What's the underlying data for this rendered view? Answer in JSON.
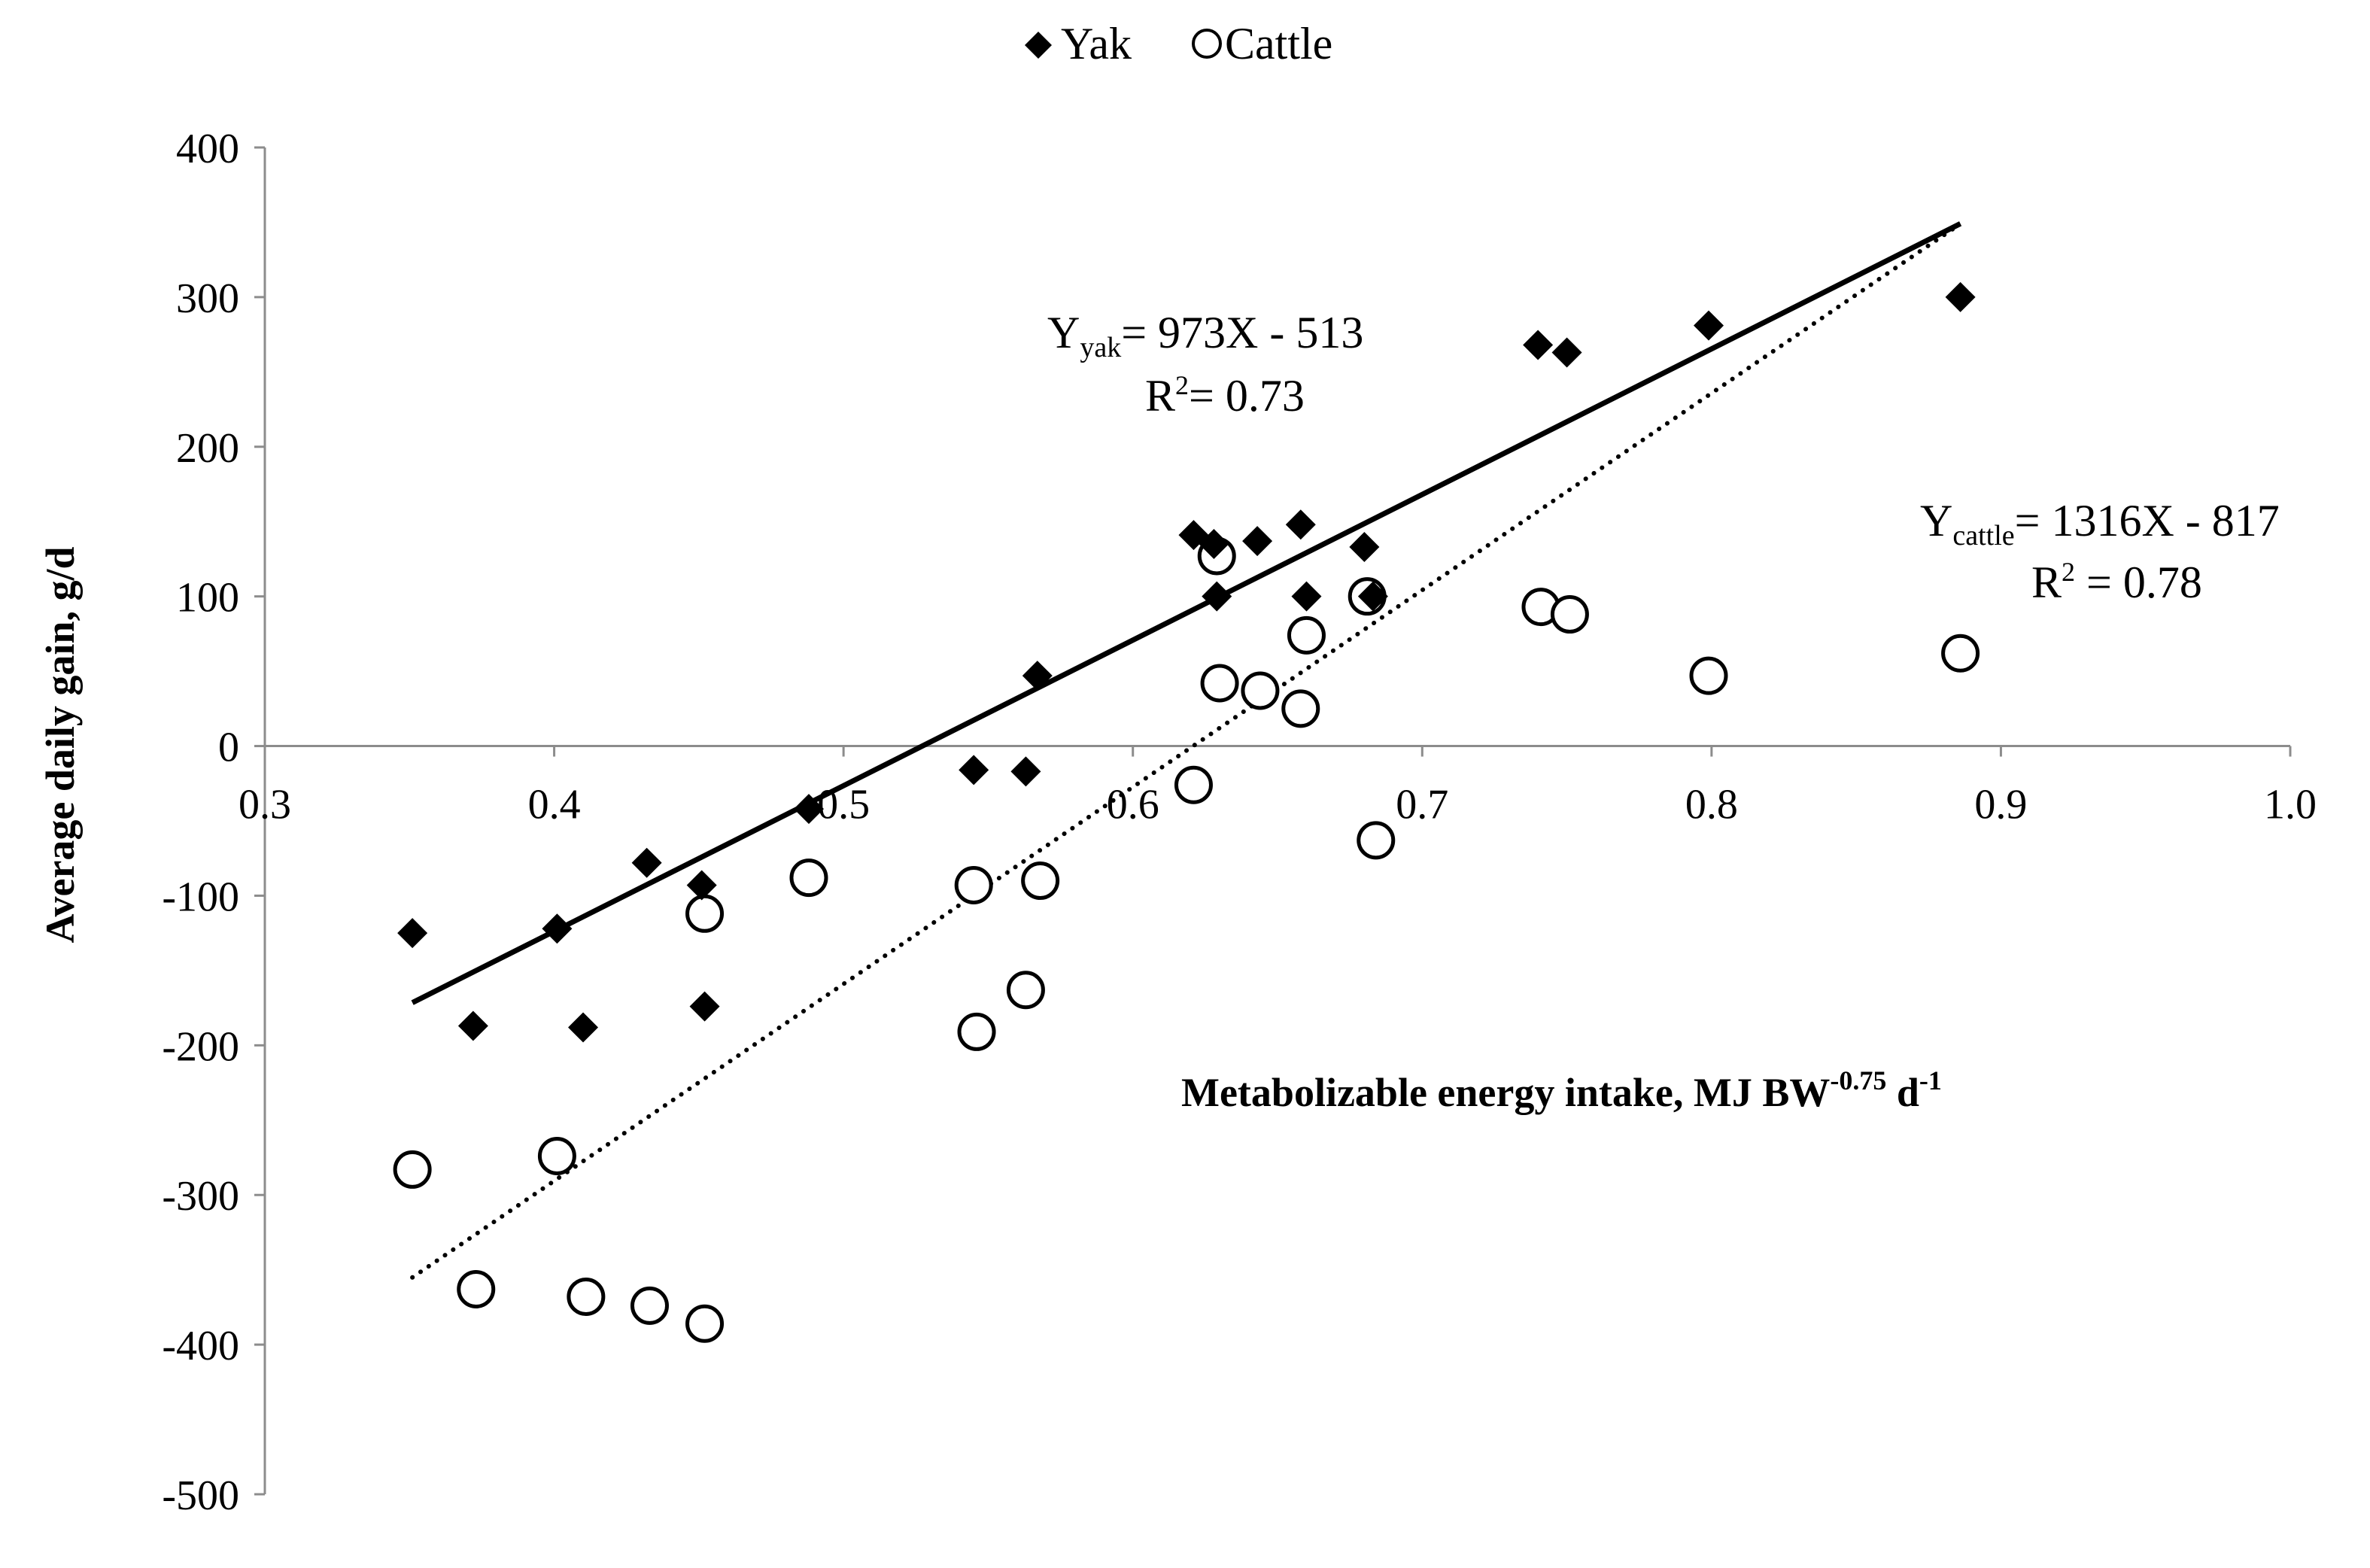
{
  "chart_data": {
    "type": "scatter",
    "title": "",
    "xlabel": "Metabolizable energy intake, MJ BW",
    "xlabel_exponent_bw": "-0.75",
    "xlabel_unit_d": " d",
    "xlabel_exponent_d": "-1",
    "ylabel": "Average daily gain, g/d",
    "xlim": [
      0.3,
      1.0
    ],
    "ylim": [
      -500,
      400
    ],
    "x_ticks": [
      "0.3",
      "0.4",
      "0.5",
      "0.6",
      "0.7",
      "0.8",
      "0.9",
      "1.0"
    ],
    "y_ticks": [
      "400",
      "300",
      "200",
      "100",
      "0",
      "-100",
      "-200",
      "-300",
      "-400",
      "-500"
    ],
    "legend": {
      "position": "top-center",
      "entries": [
        "Yak",
        "Cattle"
      ]
    },
    "series": [
      {
        "name": "Yak",
        "marker": "filled-diamond",
        "color": "#000000",
        "x": [
          0.351,
          0.372,
          0.401,
          0.41,
          0.432,
          0.451,
          0.452,
          0.488,
          0.545,
          0.563,
          0.567,
          0.621,
          0.628,
          0.629,
          0.643,
          0.658,
          0.66,
          0.68,
          0.683,
          0.74,
          0.75,
          0.799,
          0.886
        ],
        "y": [
          -125,
          -187,
          -122,
          -188,
          -78,
          -93,
          -174,
          -42,
          -16,
          -17,
          47,
          141,
          135,
          100,
          137,
          148,
          100,
          133,
          100,
          268,
          263,
          281,
          300
        ]
      },
      {
        "name": "Cattle",
        "marker": "open-circle",
        "color": "#000000",
        "x": [
          0.351,
          0.373,
          0.401,
          0.411,
          0.433,
          0.452,
          0.452,
          0.488,
          0.545,
          0.546,
          0.563,
          0.568,
          0.621,
          0.629,
          0.63,
          0.644,
          0.658,
          0.66,
          0.681,
          0.684,
          0.741,
          0.751,
          0.799,
          0.886
        ],
        "y": [
          -283,
          -363,
          -274,
          -368,
          -374,
          -386,
          -112,
          -88,
          -93,
          -191,
          -163,
          -90,
          -26,
          127,
          42,
          37,
          25,
          74,
          100,
          -63,
          93,
          88,
          47,
          62
        ]
      }
    ],
    "trendlines": [
      {
        "series": "Yak",
        "style": "solid",
        "slope": 973,
        "intercept": -513,
        "x_range": [
          0.351,
          0.886
        ],
        "equation_var": "Y",
        "equation_sub": "yak",
        "equation_rhs": "=  973X - 513",
        "r2_label": "R",
        "r2_sup": "2",
        "r2_value": "= 0.73"
      },
      {
        "series": "Cattle",
        "style": "dotted",
        "slope": 1316,
        "intercept": -817,
        "x_range": [
          0.351,
          0.886
        ],
        "equation_var": "Y",
        "equation_sub": "cattle",
        "equation_rhs": "= 1316X - 817",
        "r2_label": "R",
        "r2_sup": "2",
        "r2_value": " = 0.78"
      }
    ]
  }
}
